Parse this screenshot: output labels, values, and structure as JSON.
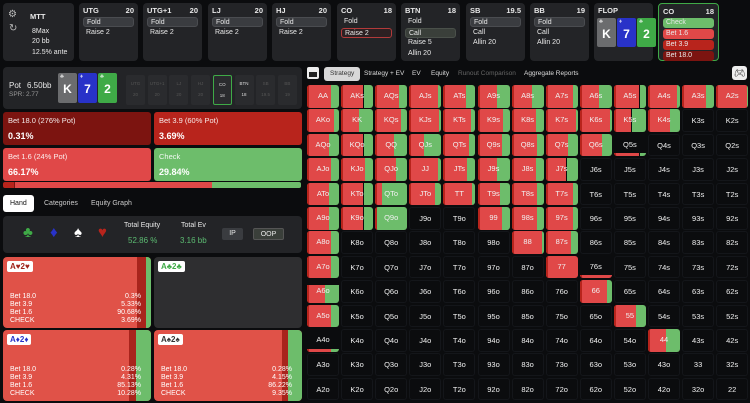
{
  "game": {
    "type": "MTT",
    "format": "8Max",
    "stack": "20 bb",
    "ante": "12.5% ante"
  },
  "seats": [
    {
      "name": "UTG",
      "stack": "20",
      "actions": [
        "Fold",
        "Raise 2"
      ],
      "selected": 0
    },
    {
      "name": "UTG+1",
      "stack": "20",
      "actions": [
        "Fold",
        "Raise 2"
      ],
      "selected": 0
    },
    {
      "name": "LJ",
      "stack": "20",
      "actions": [
        "Fold",
        "Raise 2"
      ],
      "selected": 0
    },
    {
      "name": "HJ",
      "stack": "20",
      "actions": [
        "Fold",
        "Raise 2"
      ],
      "selected": 0
    },
    {
      "name": "CO",
      "stack": "18",
      "actions": [
        "Fold",
        "Raise 2"
      ],
      "selected": 1
    },
    {
      "name": "BTN",
      "stack": "18",
      "actions": [
        "Fold",
        "Call",
        "Raise 5",
        "Allin 20"
      ],
      "selected": 1
    },
    {
      "name": "SB",
      "stack": "19.5",
      "actions": [
        "Fold",
        "Call",
        "Allin 20"
      ],
      "selected": 0
    },
    {
      "name": "BB",
      "stack": "19",
      "actions": [
        "Fold",
        "Call",
        "Allin 20"
      ],
      "selected": 0
    }
  ],
  "flop": {
    "label": "FLOP",
    "cards": [
      {
        "rank": "K",
        "suit": "♣",
        "color": "#6b6c6e"
      },
      {
        "rank": "7",
        "suit": "♦",
        "color": "#2832c8"
      },
      {
        "rank": "2",
        "suit": "♣",
        "color": "#3faa47"
      }
    ]
  },
  "current": {
    "name": "CO",
    "stack": "18",
    "actions": [
      {
        "label": "Check",
        "color": "#6dbd6b"
      },
      {
        "label": "Bet 1.6",
        "color": "#e04848"
      },
      {
        "label": "Bet 3.9",
        "color": "#b8241c"
      },
      {
        "label": "Bet 18.0",
        "color": "#7c1410"
      }
    ]
  },
  "pot": {
    "label": "Pot",
    "value": "6.50bb",
    "spr": "SPR: 2.77"
  },
  "mini_seats": [
    {
      "n": "UTG",
      "s": "20"
    },
    {
      "n": "UTG+1",
      "s": "20"
    },
    {
      "n": "LJ",
      "s": "20"
    },
    {
      "n": "HJ",
      "s": "20"
    },
    {
      "n": "CO",
      "s": "18"
    },
    {
      "n": "BTN",
      "s": "18"
    },
    {
      "n": "SB",
      "s": "19.5"
    },
    {
      "n": "BB",
      "s": "19"
    }
  ],
  "strategy": [
    {
      "label": "Bet 18.0 (276% Pot)",
      "value": "0.31%",
      "freq": 0.31,
      "color": "#7c1410"
    },
    {
      "label": "Bet 3.9 (60% Pot)",
      "value": "3.69%",
      "freq": 3.69,
      "color": "#b8241c"
    },
    {
      "label": "Bet 1.6 (24% Pot)",
      "value": "66.17%",
      "freq": 66.17,
      "color": "#e04848"
    },
    {
      "label": "Check",
      "value": "29.84%",
      "freq": 29.84,
      "color": "#6dbd6b"
    }
  ],
  "tabs": [
    "Hand",
    "Categories",
    "Equity Graph"
  ],
  "equity": {
    "equity_label": "Total Equity",
    "equity_value": "52.86 %",
    "ev_label": "Total Ev",
    "ev_value": "3.16 bb",
    "ip": "IP",
    "oop": "OOP"
  },
  "hands": [
    {
      "r1": "A",
      "s1": "♥",
      "r2": "2",
      "s2": "♥",
      "color": "#a0241c",
      "rows": [
        [
          "Bet 18.0",
          "0.3%"
        ],
        [
          "Bet 3.9",
          "5.33%"
        ],
        [
          "Bet 1.6",
          "90.68%"
        ],
        [
          "CHECK",
          "3.69%"
        ]
      ],
      "check": 3.69,
      "dark": 5.6
    },
    {
      "r1": "A",
      "s1": "♣",
      "r2": "2",
      "s2": "♣",
      "color": "#3faa47",
      "rows": [],
      "check": 0,
      "dark": 0
    },
    {
      "r1": "A",
      "s1": "♦",
      "r2": "2",
      "s2": "♦",
      "color": "#2832c8",
      "rows": [
        [
          "Bet 18.0",
          "0.28%"
        ],
        [
          "Bet 3.9",
          "4.31%"
        ],
        [
          "Bet 1.6",
          "85.13%"
        ],
        [
          "CHECK",
          "10.28%"
        ]
      ],
      "check": 10.28,
      "dark": 4.6
    },
    {
      "r1": "A",
      "s1": "♠",
      "r2": "2",
      "s2": "♠",
      "color": "#333",
      "rows": [
        [
          "Bet 18.0",
          "0.28%"
        ],
        [
          "Bet 3.9",
          "4.15%"
        ],
        [
          "Bet 1.6",
          "86.22%"
        ],
        [
          "CHECK",
          "9.35%"
        ]
      ],
      "check": 9.35,
      "dark": 4.4
    }
  ],
  "toolbar": {
    "tabs": [
      "Strategy",
      "Strategy + EV",
      "EV",
      "Equity",
      "Runout Comparison",
      "Aggregate Reports"
    ],
    "active": 0
  },
  "grid": {
    "labels": [
      [
        "AA",
        "AKs",
        "AQs",
        "AJs",
        "ATs",
        "A9s",
        "A8s",
        "A7s",
        "A6s",
        "A5s",
        "A4s",
        "A3s",
        "A2s"
      ],
      [
        "AKo",
        "KK",
        "KQs",
        "KJs",
        "KTs",
        "K9s",
        "K8s",
        "K7s",
        "K6s",
        "K5s",
        "K4s",
        "K3s",
        "K2s"
      ],
      [
        "AQo",
        "KQo",
        "QQ",
        "QJs",
        "QTs",
        "Q9s",
        "Q8s",
        "Q7s",
        "Q6s",
        "Q5s",
        "Q4s",
        "Q3s",
        "Q2s"
      ],
      [
        "AJo",
        "KJo",
        "QJo",
        "JJ",
        "JTs",
        "J9s",
        "J8s",
        "J7s",
        "J6s",
        "J5s",
        "J4s",
        "J3s",
        "J2s"
      ],
      [
        "ATo",
        "KTo",
        "QTo",
        "JTo",
        "TT",
        "T9s",
        "T8s",
        "T7s",
        "T6s",
        "T5s",
        "T4s",
        "T3s",
        "T2s"
      ],
      [
        "A9o",
        "K9o",
        "Q9o",
        "J9o",
        "T9o",
        "99",
        "98s",
        "97s",
        "96s",
        "95s",
        "94s",
        "93s",
        "92s"
      ],
      [
        "A8o",
        "K8o",
        "Q8o",
        "J8o",
        "T8o",
        "98o",
        "88",
        "87s",
        "86s",
        "85s",
        "84s",
        "83s",
        "82s"
      ],
      [
        "A7o",
        "K7o",
        "Q7o",
        "J7o",
        "T7o",
        "97o",
        "87o",
        "77",
        "76s",
        "75s",
        "74s",
        "73s",
        "72s"
      ],
      [
        "A6o",
        "K6o",
        "Q6o",
        "J6o",
        "T6o",
        "96o",
        "86o",
        "76o",
        "66",
        "65s",
        "64s",
        "63s",
        "62s"
      ],
      [
        "A5o",
        "K5o",
        "Q5o",
        "J5o",
        "T5o",
        "95o",
        "85o",
        "75o",
        "65o",
        "55",
        "54s",
        "53s",
        "52s"
      ],
      [
        "A4o",
        "K4o",
        "Q4o",
        "J4o",
        "T4o",
        "94o",
        "84o",
        "74o",
        "64o",
        "54o",
        "44",
        "43s",
        "42s"
      ],
      [
        "A3o",
        "K3o",
        "Q3o",
        "J3o",
        "T3o",
        "93o",
        "83o",
        "73o",
        "63o",
        "53o",
        "43o",
        "33",
        "32s"
      ],
      [
        "A2o",
        "K2o",
        "Q2o",
        "J2o",
        "T2o",
        "92o",
        "82o",
        "72o",
        "62o",
        "52o",
        "42o",
        "32o",
        "22"
      ]
    ],
    "freq": [
      [
        1,
        1,
        1,
        1,
        1,
        1,
        1,
        1,
        1,
        1,
        1,
        1,
        1
      ],
      [
        1,
        1,
        1,
        1,
        1,
        1,
        1,
        1,
        1,
        1,
        1,
        0,
        0
      ],
      [
        1,
        1,
        1,
        1,
        1,
        1,
        1,
        1,
        1,
        0.1,
        0,
        0,
        0
      ],
      [
        1,
        1,
        1,
        1,
        1,
        1,
        1,
        1,
        0,
        0,
        0,
        0,
        0
      ],
      [
        1,
        1,
        1,
        1,
        1,
        1,
        1,
        1,
        0,
        0,
        0,
        0,
        0
      ],
      [
        1,
        1,
        1,
        0,
        0,
        1,
        1,
        1,
        0,
        0,
        0,
        0,
        0
      ],
      [
        1,
        0,
        0,
        0,
        0,
        0,
        1,
        1,
        0,
        0,
        0,
        0,
        0
      ],
      [
        1,
        0,
        0,
        0,
        0,
        0,
        0,
        1,
        0.05,
        0,
        0,
        0,
        0
      ],
      [
        0.8,
        0,
        0,
        0,
        0,
        0,
        0,
        0,
        1,
        0,
        0,
        0,
        0
      ],
      [
        1,
        0,
        0,
        0,
        0,
        0,
        0,
        0,
        0,
        1,
        0,
        0,
        0
      ],
      [
        0.15,
        0,
        0,
        0,
        0,
        0,
        0,
        0,
        0,
        0,
        1,
        0,
        0
      ],
      [
        0,
        0,
        0,
        0,
        0,
        0,
        0,
        0,
        0,
        0,
        0,
        0,
        0
      ],
      [
        0,
        0,
        0,
        0,
        0,
        0,
        0,
        0,
        0,
        0,
        0,
        0,
        0
      ]
    ],
    "check": [
      [
        0.25,
        0.3,
        0.25,
        0.1,
        0.3,
        0.4,
        0.35,
        0.15,
        0.4,
        0.2,
        0.1,
        0.25,
        0.05
      ],
      [
        0.15,
        0.45,
        0.2,
        0.08,
        0.15,
        0.2,
        0.25,
        0.05,
        0.05,
        0.45,
        0.3,
        0,
        0
      ],
      [
        0.3,
        0.3,
        0.4,
        0.55,
        0.2,
        0.25,
        0.2,
        0.3,
        0.3,
        0.2,
        0,
        0,
        0
      ],
      [
        0.25,
        0.25,
        0.35,
        0.1,
        0.25,
        0.4,
        0.25,
        0.35,
        0,
        0,
        0,
        0,
        0
      ],
      [
        0.3,
        0.3,
        0.8,
        0.2,
        0.1,
        0.3,
        0.2,
        0.15,
        0,
        0,
        0,
        0,
        0
      ],
      [
        0.3,
        0.3,
        0.95,
        0,
        0,
        0.25,
        0.2,
        0.15,
        0,
        0,
        0,
        0,
        0
      ],
      [
        0.25,
        0,
        0,
        0,
        0,
        0,
        0.05,
        0.2,
        0,
        0,
        0,
        0,
        0
      ],
      [
        0.25,
        0,
        0,
        0,
        0,
        0,
        0,
        0,
        0,
        0,
        0,
        0,
        0
      ],
      [
        0.45,
        0,
        0,
        0,
        0,
        0,
        0,
        0,
        0.15,
        0,
        0,
        0,
        0
      ],
      [
        0.25,
        0,
        0,
        0,
        0,
        0,
        0,
        0,
        0,
        0.3,
        0,
        0,
        0
      ],
      [
        0.25,
        0,
        0,
        0,
        0,
        0,
        0,
        0,
        0,
        0,
        0.45,
        0,
        0
      ],
      [
        0,
        0,
        0,
        0,
        0,
        0,
        0,
        0,
        0,
        0,
        0,
        0,
        0
      ],
      [
        0,
        0,
        0,
        0,
        0,
        0,
        0,
        0,
        0,
        0,
        0,
        0,
        0
      ]
    ]
  },
  "colors": {
    "check": "#6dbd6b",
    "bet_small": "#e04848",
    "bet_mid": "#b8241c",
    "bet_big": "#7c1410",
    "accent": "#3faa47"
  }
}
